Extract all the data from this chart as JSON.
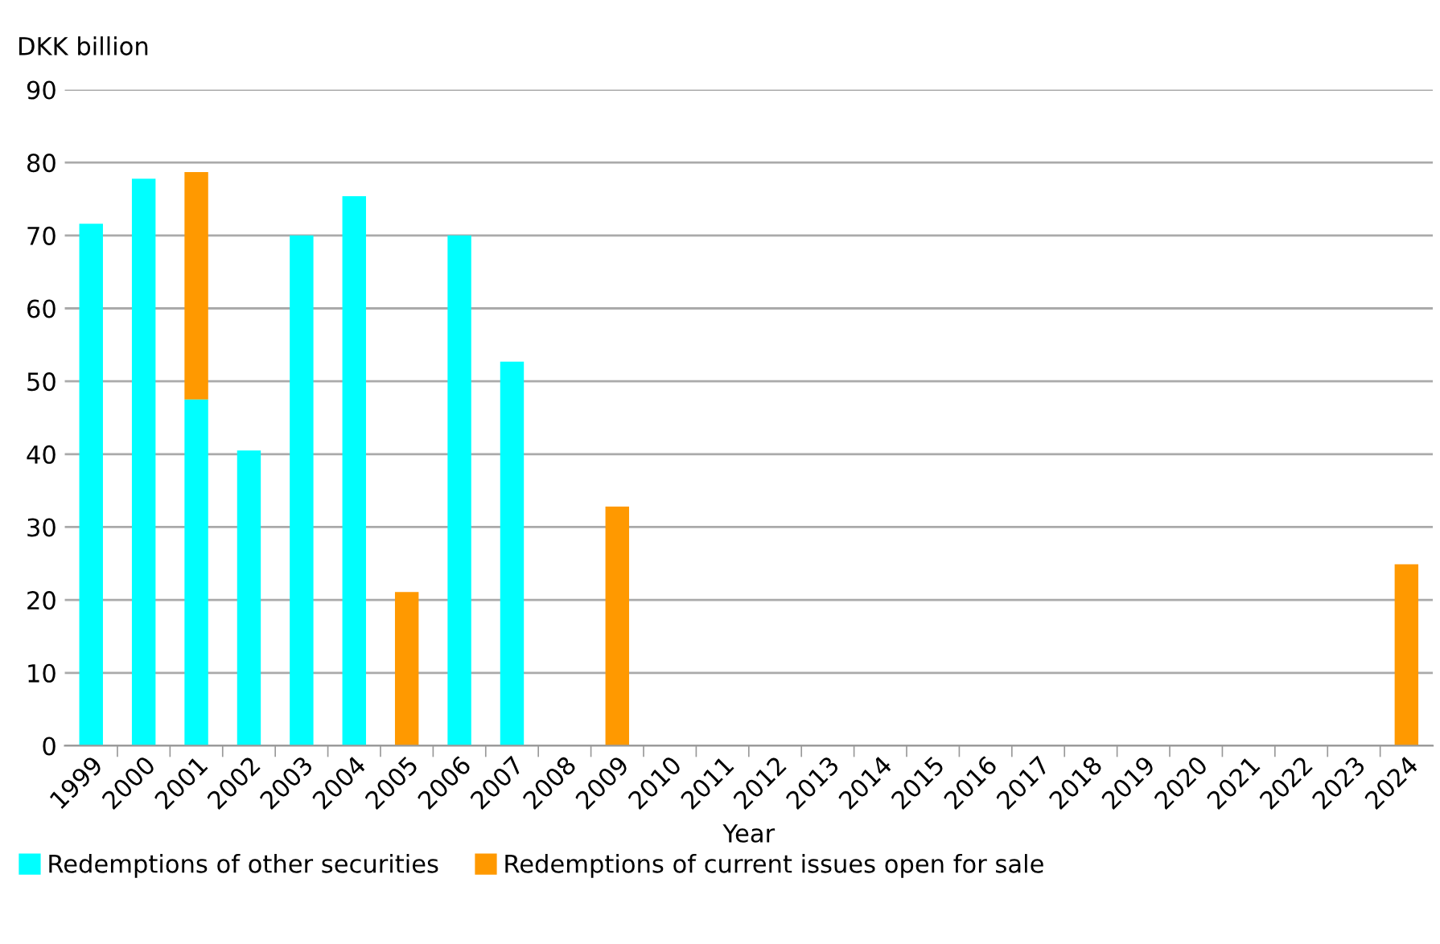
{
  "chart_data": {
    "type": "bar",
    "stacked": true,
    "ylabel": "DKK billion",
    "xlabel": "Year",
    "categories": [
      "1999",
      "2000",
      "2001",
      "2002",
      "2003",
      "2004",
      "2005",
      "2006",
      "2007",
      "2008",
      "2009",
      "2010",
      "2011",
      "2012",
      "2013",
      "2014",
      "2015",
      "2016",
      "2017",
      "2018",
      "2019",
      "2020",
      "2021",
      "2022",
      "2023",
      "2024"
    ],
    "series": [
      {
        "name": "Redemptions of other securities",
        "color": "#00ffff",
        "values": [
          71.6,
          77.8,
          47.5,
          40.5,
          70,
          75.4,
          null,
          70,
          52.7,
          0,
          0,
          null,
          0,
          0,
          0,
          0,
          0,
          0,
          0,
          0,
          0,
          0,
          0,
          0,
          0,
          0
        ]
      },
      {
        "name": "Redemptions of current issues open for sale",
        "color": "#ff9900",
        "values": [
          0,
          0,
          31.2,
          0,
          0,
          0,
          21.1,
          0,
          0,
          0,
          32.8,
          0,
          0,
          0,
          0,
          0,
          0,
          0,
          0,
          0,
          0,
          0,
          0,
          0,
          0,
          24.9
        ]
      }
    ],
    "ylim": [
      0,
      90
    ],
    "yticks": [
      0,
      10,
      20,
      30,
      40,
      50,
      60,
      70,
      80,
      90
    ],
    "grid": "y",
    "legend": "bottom left"
  }
}
